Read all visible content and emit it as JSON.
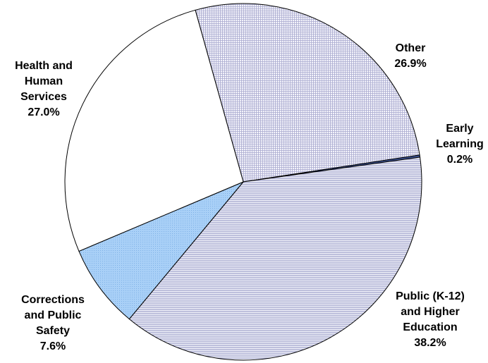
{
  "chart_data": {
    "type": "pie",
    "slices": [
      {
        "name": "Other",
        "value": 26.9,
        "label_lines": [
          "Other",
          "26.9%"
        ],
        "pattern": "grid",
        "color": "#e8e8f6"
      },
      {
        "name": "Early Learning",
        "value": 0.2,
        "label_lines": [
          "Early",
          "Learning",
          "0.2%"
        ],
        "pattern": "solid",
        "color": "#3a4f8e"
      },
      {
        "name": "Public (K-12) and Higher Education",
        "value": 38.2,
        "label_lines": [
          "Public (K-12)",
          "and Higher",
          "Education",
          "38.2%"
        ],
        "pattern": "horizontal-lines",
        "color": "#c8cae6"
      },
      {
        "name": "Corrections and Public Safety",
        "value": 7.6,
        "label_lines": [
          "Corrections",
          "and Public",
          "Safety",
          "7.6%"
        ],
        "pattern": "dots",
        "color": "#a6cdf5"
      },
      {
        "name": "Health and Human Services",
        "value": 27.0,
        "label_lines": [
          "Health and",
          "Human",
          "Services",
          "27.0%"
        ],
        "pattern": "none",
        "color": "#ffffff"
      }
    ],
    "legend": "none",
    "start_direction": "upper-left, clockwise"
  }
}
